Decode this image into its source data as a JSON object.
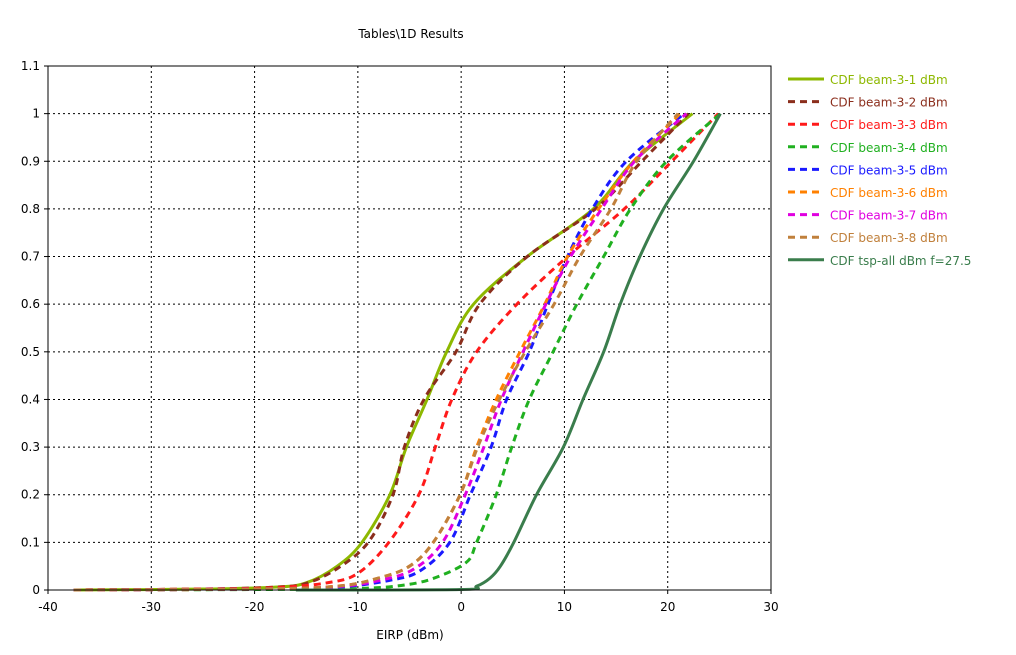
{
  "chart_data": {
    "type": "line",
    "title": "Tables\\1D Results",
    "xlabel": "EIRP (dBm)",
    "ylabel": "",
    "xlim": [
      -40,
      30
    ],
    "ylim": [
      0,
      1.1
    ],
    "xticks": [
      "-40",
      "-30",
      "-20",
      "-10",
      "0",
      "10",
      "20",
      "30"
    ],
    "yticks": [
      "0",
      "0.1",
      "0.2",
      "0.3",
      "0.4",
      "0.5",
      "0.6",
      "0.7",
      "0.8",
      "0.9",
      "1",
      "1.1"
    ],
    "grid": true,
    "legend_position": "right",
    "series": [
      {
        "name": "CDF beam-3-1 dBm",
        "color": "#8db800",
        "dashed": false,
        "points": [
          [
            -37.5,
            0
          ],
          [
            -25,
            0.002
          ],
          [
            -18,
            0.006
          ],
          [
            -15,
            0.015
          ],
          [
            -12,
            0.05
          ],
          [
            -9.6,
            0.1
          ],
          [
            -6.9,
            0.2
          ],
          [
            -5.3,
            0.3
          ],
          [
            -3.3,
            0.4
          ],
          [
            -1.4,
            0.5
          ],
          [
            1.2,
            0.6
          ],
          [
            6.4,
            0.7
          ],
          [
            12.8,
            0.8
          ],
          [
            16.7,
            0.9
          ],
          [
            22.4,
            1
          ]
        ]
      },
      {
        "name": "CDF beam-3-2 dBm",
        "color": "#8b2e1c",
        "dashed": true,
        "points": [
          [
            -37.5,
            0
          ],
          [
            -25,
            0.002
          ],
          [
            -18,
            0.006
          ],
          [
            -15,
            0.014
          ],
          [
            -12,
            0.045
          ],
          [
            -9,
            0.1
          ],
          [
            -6.6,
            0.2
          ],
          [
            -5.5,
            0.3
          ],
          [
            -3.6,
            0.4
          ],
          [
            -0.5,
            0.5
          ],
          [
            1.8,
            0.6
          ],
          [
            6.4,
            0.7
          ],
          [
            13,
            0.8
          ],
          [
            17.5,
            0.9
          ],
          [
            22,
            1
          ]
        ]
      },
      {
        "name": "CDF beam-3-3 dBm",
        "color": "#ff1a1a",
        "dashed": true,
        "points": [
          [
            -37.5,
            0
          ],
          [
            -25,
            0.002
          ],
          [
            -18,
            0.005
          ],
          [
            -13,
            0.015
          ],
          [
            -10,
            0.035
          ],
          [
            -7,
            0.1
          ],
          [
            -4.1,
            0.2
          ],
          [
            -2.5,
            0.3
          ],
          [
            -0.9,
            0.4
          ],
          [
            1.5,
            0.5
          ],
          [
            5.4,
            0.6
          ],
          [
            10.3,
            0.7
          ],
          [
            15.8,
            0.8
          ],
          [
            20.4,
            0.9
          ],
          [
            24.9,
            1
          ]
        ]
      },
      {
        "name": "CDF beam-3-4 dBm",
        "color": "#20b020",
        "dashed": true,
        "points": [
          [
            -37.5,
            0
          ],
          [
            -20,
            0.001
          ],
          [
            -10,
            0.003
          ],
          [
            -5,
            0.012
          ],
          [
            -2,
            0.03
          ],
          [
            0.6,
            0.06
          ],
          [
            1.5,
            0.1
          ],
          [
            3.4,
            0.2
          ],
          [
            4.9,
            0.3
          ],
          [
            6.6,
            0.4
          ],
          [
            8.9,
            0.5
          ],
          [
            11.2,
            0.6
          ],
          [
            13.8,
            0.7
          ],
          [
            16.4,
            0.8
          ],
          [
            19.9,
            0.9
          ],
          [
            25.1,
            1
          ]
        ]
      },
      {
        "name": "CDF beam-3-5 dBm",
        "color": "#1a1aff",
        "dashed": true,
        "points": [
          [
            -37.5,
            0
          ],
          [
            -20,
            0.002
          ],
          [
            -12,
            0.006
          ],
          [
            -7,
            0.02
          ],
          [
            -4,
            0.04
          ],
          [
            -1.1,
            0.1
          ],
          [
            0.9,
            0.2
          ],
          [
            2.9,
            0.3
          ],
          [
            4.4,
            0.4
          ],
          [
            6.6,
            0.5
          ],
          [
            8.4,
            0.6
          ],
          [
            10.3,
            0.7
          ],
          [
            12.7,
            0.8
          ],
          [
            16,
            0.9
          ],
          [
            21.6,
            1
          ]
        ]
      },
      {
        "name": "CDF beam-3-6 dBm",
        "color": "#ff8000",
        "dashed": true,
        "points": [
          [
            -37.5,
            0
          ],
          [
            -20,
            0.002
          ],
          [
            -12,
            0.008
          ],
          [
            -8,
            0.025
          ],
          [
            -5,
            0.05
          ],
          [
            -2.7,
            0.1
          ],
          [
            -0.1,
            0.2
          ],
          [
            1.5,
            0.3
          ],
          [
            3.4,
            0.4
          ],
          [
            5.7,
            0.5
          ],
          [
            8.1,
            0.6
          ],
          [
            10.3,
            0.7
          ],
          [
            13.3,
            0.8
          ],
          [
            16.7,
            0.9
          ],
          [
            21.2,
            1
          ]
        ]
      },
      {
        "name": "CDF beam-3-7 dBm",
        "color": "#e000e0",
        "dashed": true,
        "points": [
          [
            -37.5,
            0
          ],
          [
            -20,
            0.002
          ],
          [
            -12,
            0.007
          ],
          [
            -7.5,
            0.022
          ],
          [
            -4.5,
            0.045
          ],
          [
            -1.8,
            0.1
          ],
          [
            0.4,
            0.2
          ],
          [
            2.2,
            0.3
          ],
          [
            3.9,
            0.4
          ],
          [
            6,
            0.5
          ],
          [
            8.2,
            0.6
          ],
          [
            10.6,
            0.7
          ],
          [
            13.6,
            0.8
          ],
          [
            16.8,
            0.9
          ],
          [
            21.8,
            1
          ]
        ]
      },
      {
        "name": "CDF beam-3-8 dBm",
        "color": "#c0803c",
        "dashed": true,
        "points": [
          [
            -37.5,
            0
          ],
          [
            -20,
            0.002
          ],
          [
            -12,
            0.008
          ],
          [
            -8,
            0.025
          ],
          [
            -5,
            0.05
          ],
          [
            -2.7,
            0.1
          ],
          [
            -0.1,
            0.2
          ],
          [
            1.6,
            0.3
          ],
          [
            3.7,
            0.4
          ],
          [
            6.2,
            0.5
          ],
          [
            9,
            0.6
          ],
          [
            11.5,
            0.7
          ],
          [
            14.5,
            0.8
          ],
          [
            17,
            0.9
          ],
          [
            21,
            1
          ]
        ]
      },
      {
        "name": "CDF tsp-all dBm f=27.5",
        "color": "#3a7d4c",
        "dashed": false,
        "points": [
          [
            -16,
            0
          ],
          [
            0,
            0.001
          ],
          [
            1.5,
            0.008
          ],
          [
            2.8,
            0.025
          ],
          [
            3.8,
            0.05
          ],
          [
            5.1,
            0.1
          ],
          [
            7.3,
            0.2
          ],
          [
            9.9,
            0.3
          ],
          [
            11.8,
            0.4
          ],
          [
            13.8,
            0.5
          ],
          [
            15.4,
            0.6
          ],
          [
            17.3,
            0.7
          ],
          [
            19.6,
            0.8
          ],
          [
            22.5,
            0.9
          ],
          [
            25.1,
            1
          ]
        ]
      }
    ]
  }
}
